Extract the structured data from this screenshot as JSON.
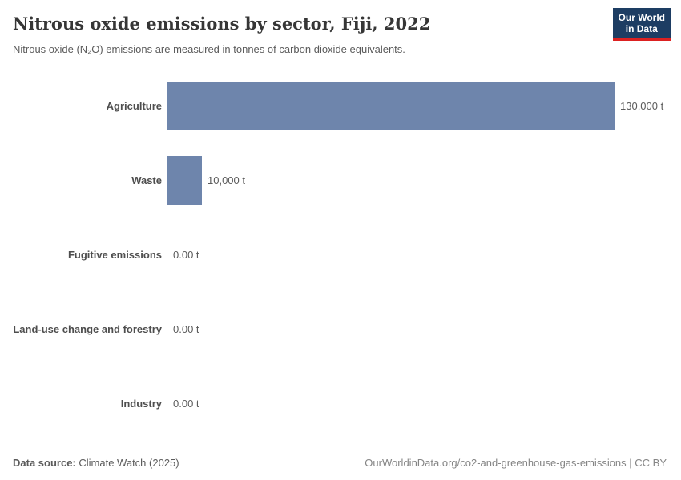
{
  "header": {
    "title": "Nitrous oxide emissions by sector, Fiji, 2022",
    "subtitle": "Nitrous oxide (N₂O) emissions are measured in tonnes of carbon dioxide equivalents.",
    "logo": {
      "line1": "Our World",
      "line2": "in Data",
      "bg_color": "#1d3d63",
      "accent_color": "#dc2121"
    }
  },
  "chart_data": {
    "type": "bar",
    "orientation": "horizontal",
    "title": "Nitrous oxide emissions by sector, Fiji, 2022",
    "categories": [
      "Agriculture",
      "Waste",
      "Fugitive emissions",
      "Land-use change and forestry",
      "Industry"
    ],
    "values": [
      130000,
      10000,
      0,
      0,
      0
    ],
    "value_labels": [
      "130,000 t",
      "10,000 t",
      "0.00 t",
      "0.00 t",
      "0.00 t"
    ],
    "unit": "t",
    "xlabel": "",
    "ylabel": "",
    "xlim": [
      0,
      130000
    ],
    "grid": false,
    "legend": "none",
    "bar_color": "#6e85ac",
    "axis_color": "#dcdcdc"
  },
  "footer": {
    "data_source_label": "Data source:",
    "data_source_value": "Climate Watch (2025)",
    "attribution": "OurWorldinData.org/co2-and-greenhouse-gas-emissions | CC BY"
  }
}
